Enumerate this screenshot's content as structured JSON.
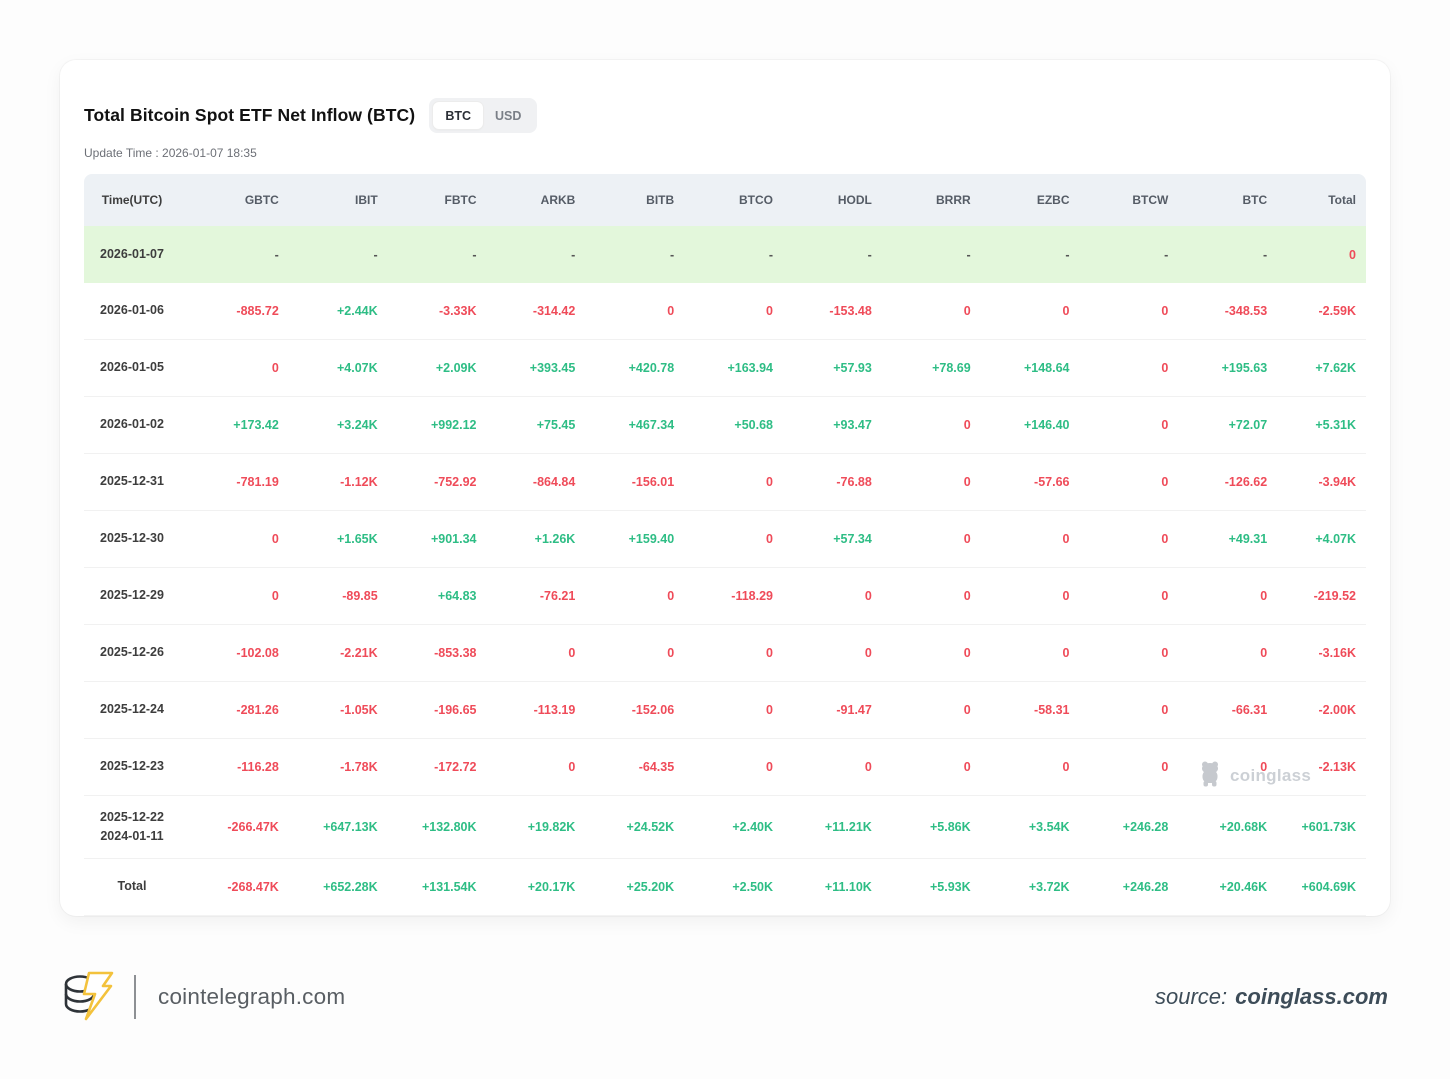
{
  "header": {
    "title": "Total Bitcoin Spot ETF Net Inflow (BTC)",
    "toggle": {
      "btc": "BTC",
      "usd": "USD",
      "selected": "BTC"
    },
    "update_time": "Update Time : 2026-01-07 18:35"
  },
  "colors": {
    "positive": "#2ebd85",
    "negative": "#ef4b59",
    "highlight_row": "#e3f7db",
    "header_bg": "#edf1f5"
  },
  "chart_data": {
    "type": "table",
    "title": "Total Bitcoin Spot ETF Net Inflow (BTC)",
    "columns": [
      "Time(UTC)",
      "GBTC",
      "IBIT",
      "FBTC",
      "ARKB",
      "BITB",
      "BTCO",
      "HODL",
      "BRRR",
      "EZBC",
      "BTCW",
      "BTC",
      "Total"
    ],
    "rows": [
      {
        "date_lines": [
          "2026-01-07"
        ],
        "highlight": true,
        "values": [
          "-",
          "-",
          "-",
          "-",
          "-",
          "-",
          "-",
          "-",
          "-",
          "-",
          "-",
          "0"
        ]
      },
      {
        "date_lines": [
          "2026-01-06"
        ],
        "values": [
          "-885.72",
          "+2.44K",
          "-3.33K",
          "-314.42",
          "0",
          "0",
          "-153.48",
          "0",
          "0",
          "0",
          "-348.53",
          "-2.59K"
        ]
      },
      {
        "date_lines": [
          "2026-01-05"
        ],
        "values": [
          "0",
          "+4.07K",
          "+2.09K",
          "+393.45",
          "+420.78",
          "+163.94",
          "+57.93",
          "+78.69",
          "+148.64",
          "0",
          "+195.63",
          "+7.62K"
        ]
      },
      {
        "date_lines": [
          "2026-01-02"
        ],
        "values": [
          "+173.42",
          "+3.24K",
          "+992.12",
          "+75.45",
          "+467.34",
          "+50.68",
          "+93.47",
          "0",
          "+146.40",
          "0",
          "+72.07",
          "+5.31K"
        ]
      },
      {
        "date_lines": [
          "2025-12-31"
        ],
        "values": [
          "-781.19",
          "-1.12K",
          "-752.92",
          "-864.84",
          "-156.01",
          "0",
          "-76.88",
          "0",
          "-57.66",
          "0",
          "-126.62",
          "-3.94K"
        ]
      },
      {
        "date_lines": [
          "2025-12-30"
        ],
        "values": [
          "0",
          "+1.65K",
          "+901.34",
          "+1.26K",
          "+159.40",
          "0",
          "+57.34",
          "0",
          "0",
          "0",
          "+49.31",
          "+4.07K"
        ]
      },
      {
        "date_lines": [
          "2025-12-29"
        ],
        "values": [
          "0",
          "-89.85",
          "+64.83",
          "-76.21",
          "0",
          "-118.29",
          "0",
          "0",
          "0",
          "0",
          "0",
          "-219.52"
        ]
      },
      {
        "date_lines": [
          "2025-12-26"
        ],
        "values": [
          "-102.08",
          "-2.21K",
          "-853.38",
          "0",
          "0",
          "0",
          "0",
          "0",
          "0",
          "0",
          "0",
          "-3.16K"
        ]
      },
      {
        "date_lines": [
          "2025-12-24"
        ],
        "values": [
          "-281.26",
          "-1.05K",
          "-196.65",
          "-113.19",
          "-152.06",
          "0",
          "-91.47",
          "0",
          "-58.31",
          "0",
          "-66.31",
          "-2.00K"
        ]
      },
      {
        "date_lines": [
          "2025-12-23"
        ],
        "values": [
          "-116.28",
          "-1.78K",
          "-172.72",
          "0",
          "-64.35",
          "0",
          "0",
          "0",
          "0",
          "0",
          "0",
          "-2.13K"
        ]
      },
      {
        "date_lines": [
          "2025-12-22",
          "2024-01-11"
        ],
        "values": [
          "-266.47K",
          "+647.13K",
          "+132.80K",
          "+19.82K",
          "+24.52K",
          "+2.40K",
          "+11.21K",
          "+5.86K",
          "+3.54K",
          "+246.28",
          "+20.68K",
          "+601.73K"
        ]
      },
      {
        "date_lines": [
          "Total"
        ],
        "is_total": true,
        "values": [
          "-268.47K",
          "+652.28K",
          "+131.54K",
          "+20.17K",
          "+25.20K",
          "+2.50K",
          "+11.10K",
          "+5.93K",
          "+3.72K",
          "+246.28",
          "+20.46K",
          "+604.69K"
        ]
      }
    ]
  },
  "watermark": {
    "label": "coinglass",
    "icon": "bear-icon"
  },
  "footer": {
    "brand": "cointelegraph.com",
    "logo_icon": "cointelegraph-logo",
    "source_prefix": "source:",
    "source_name": "coinglass.com"
  }
}
